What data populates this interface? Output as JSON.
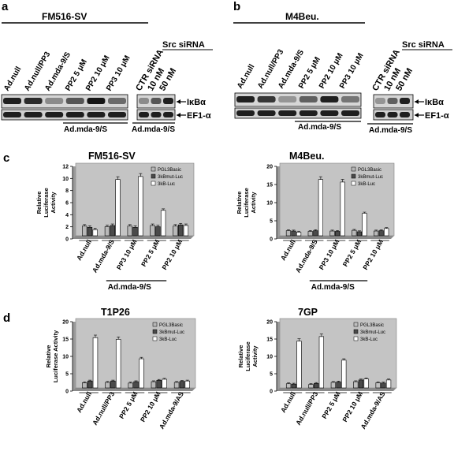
{
  "panel_a": {
    "letter": "a",
    "cell_line": "FM516-SV",
    "lanes": [
      "Ad.null",
      "Ad.null/PP3",
      "Ad.mda-9/S",
      "PP2 5 μM",
      "PP2 10 μM",
      "PP3 10 μM"
    ],
    "sirna_lanes": [
      "CTR siRNA",
      "10 nM",
      "50 nM"
    ],
    "src_sirna": "Src siRNA",
    "group_label": "Ad.mda-9/S",
    "group_label_sirna": "Ad.mda-9/S"
  },
  "panel_b": {
    "letter": "b",
    "cell_line": "M4Beu.",
    "lanes": [
      "Ad.null",
      "Ad.null/PP3",
      "Ad.mda-9/S",
      "PP2 5 μM",
      "PP2 10 μM",
      "PP3 10 μM"
    ],
    "sirna_lanes": [
      "CTR siRNA",
      "10 nM",
      "50 nM"
    ],
    "src_sirna": "Src siRNA",
    "group_label": "Ad.mda-9/S",
    "group_label_sirna": "Ad.mda-9/S"
  },
  "blot_labels": {
    "ikba": "IκBα",
    "ef1a": "EF1-α"
  },
  "panel_c_letter": "c",
  "panel_d_letter": "d",
  "chart_data": [
    {
      "type": "bar",
      "title": "FM516-SV",
      "ylabel": [
        "Relative",
        "Luciferase",
        "Activity"
      ],
      "ylim": [
        0,
        12
      ],
      "yticks": [
        0,
        2,
        4,
        6,
        8,
        10,
        12
      ],
      "categories": [
        "Ad.null",
        "Ad.mda-9/S",
        "PP3 10 μM",
        "PP2 5 μM",
        "PP2 10 μM"
      ],
      "series": [
        {
          "name": "PGL3Basic",
          "values": [
            1.6,
            1.5,
            1.6,
            1.7,
            1.6
          ]
        },
        {
          "name": "3kBmut-Luc",
          "values": [
            1.4,
            1.7,
            1.4,
            1.5,
            1.8
          ]
        },
        {
          "name": "3kB-Luc",
          "values": [
            1.0,
            9.3,
            9.8,
            4.2,
            1.7
          ]
        }
      ],
      "colors": [
        "#b8b8b8",
        "#4a4a4a",
        "#ffffff"
      ],
      "legend": "top-right",
      "group": {
        "label": "Ad.mda-9/S",
        "from": 1,
        "to": 3
      }
    },
    {
      "type": "bar",
      "title": "M4Beu.",
      "ylabel": [
        "Relative",
        "Luciferase",
        "Activity"
      ],
      "ylim": [
        0,
        20
      ],
      "yticks": [
        0,
        5,
        10,
        15,
        20
      ],
      "categories": [
        "Ad.null",
        "Ad.mda-9/S",
        "PP3 10 μM",
        "PP2 5 μM",
        "PP2 10 μM"
      ],
      "series": [
        {
          "name": "PGL3Basic",
          "values": [
            1.4,
            1.2,
            1.3,
            1.5,
            1.3
          ]
        },
        {
          "name": "3kBmut-Luc",
          "values": [
            1.3,
            1.4,
            1.2,
            1.1,
            1.4
          ]
        },
        {
          "name": "3kB-Luc",
          "values": [
            1.0,
            15.5,
            14.8,
            6.2,
            2.0
          ]
        }
      ],
      "colors": [
        "#b8b8b8",
        "#4a4a4a",
        "#ffffff"
      ],
      "legend": "top-right",
      "group": {
        "label": "Ad.mda-9/S",
        "from": 1,
        "to": 3
      }
    },
    {
      "type": "bar",
      "title": "T1P26",
      "ylabel": [
        "Relative",
        "Luciferase Activity"
      ],
      "ylim": [
        0,
        20
      ],
      "yticks": [
        0,
        5,
        10,
        15,
        20
      ],
      "categories": [
        "Ad.null",
        "Ad.null/PP3",
        "PP2 5 μM",
        "PP2 10 μM",
        "Ad.mda-9/AS"
      ],
      "series": [
        {
          "name": "PGL3Basic",
          "values": [
            1.5,
            1.6,
            1.4,
            1.8,
            1.6
          ]
        },
        {
          "name": "3kBmut-Luc",
          "values": [
            2.0,
            2.0,
            1.8,
            2.2,
            1.9
          ]
        },
        {
          "name": "3kB-Luc",
          "values": [
            14.5,
            14.0,
            8.4,
            2.5,
            2.0
          ]
        }
      ],
      "colors": [
        "#b8b8b8",
        "#4a4a4a",
        "#ffffff"
      ],
      "legend": "top-right"
    },
    {
      "type": "bar",
      "title": "7GP",
      "ylabel": [
        "Relative",
        "Luciferase",
        "Activity"
      ],
      "ylim": [
        0,
        20
      ],
      "yticks": [
        0,
        5,
        10,
        15,
        20
      ],
      "categories": [
        "Ad.null",
        "Ad.null/PP3",
        "PP2 5 μM",
        "PP2 10 μM",
        "Ad.mda-9/AS"
      ],
      "series": [
        {
          "name": "PGL3Basic",
          "values": [
            1.2,
            1.0,
            1.6,
            1.8,
            1.5
          ]
        },
        {
          "name": "3kBmut-Luc",
          "values": [
            1.1,
            1.3,
            1.7,
            2.3,
            1.4
          ]
        },
        {
          "name": "3kB-Luc",
          "values": [
            13.5,
            14.8,
            8.0,
            2.6,
            2.3
          ]
        }
      ],
      "colors": [
        "#c0c0c0",
        "#4a4a4a",
        "#ffffff"
      ],
      "legend": "top-right"
    }
  ]
}
